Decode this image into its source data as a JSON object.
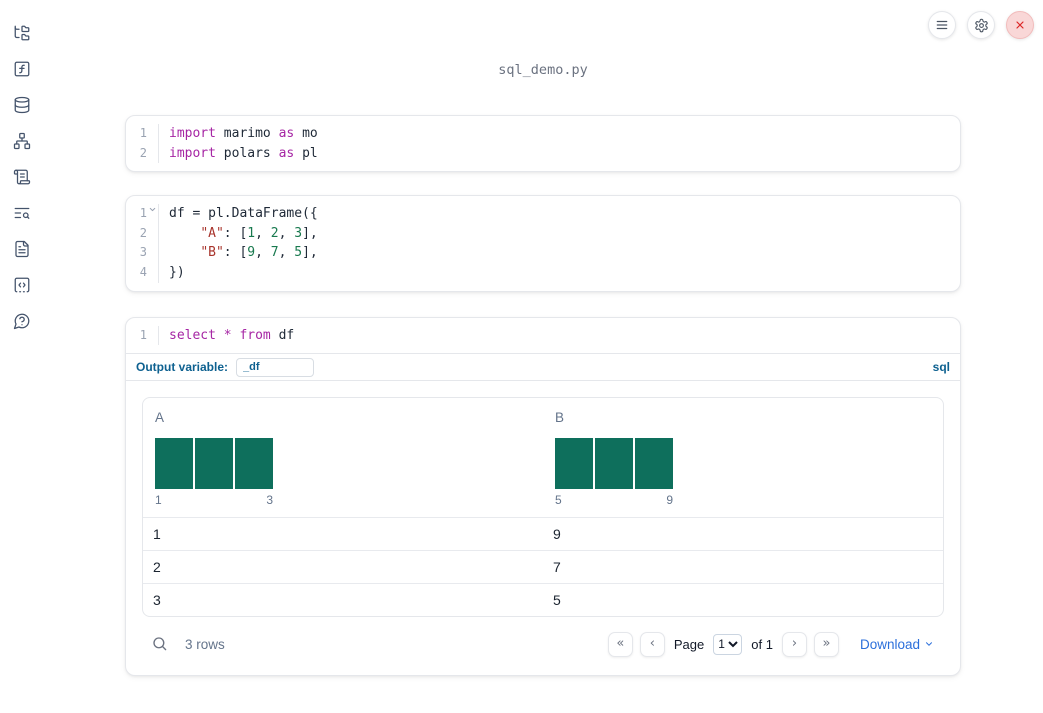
{
  "app": {
    "title": "sql_demo.py"
  },
  "colors": {
    "keyword": "#a626a4",
    "string": "#a8342c",
    "number": "#18794e",
    "histogram_bar": "#0e6f5c",
    "accent_blue": "#0e6190",
    "download_blue": "#2b6fdb",
    "close_red": "#dc2626"
  },
  "topbar": {
    "buttons": [
      "menu",
      "settings",
      "shutdown"
    ]
  },
  "sidebar": {
    "items": [
      {
        "icon": "file-explorer"
      },
      {
        "icon": "variables"
      },
      {
        "icon": "datasources"
      },
      {
        "icon": "dependencies"
      },
      {
        "icon": "scratchpad"
      },
      {
        "icon": "logs"
      },
      {
        "icon": "documentation"
      },
      {
        "icon": "snippets"
      },
      {
        "icon": "help"
      }
    ]
  },
  "cells": [
    {
      "name": "imports-cell",
      "lines": [
        {
          "n": "1",
          "toks": [
            [
              "kw",
              "import"
            ],
            [
              "pl",
              " marimo "
            ],
            [
              "kw",
              "as"
            ],
            [
              "pl",
              " mo"
            ]
          ]
        },
        {
          "n": "2",
          "toks": [
            [
              "kw",
              "import"
            ],
            [
              "pl",
              " polars "
            ],
            [
              "kw",
              "as"
            ],
            [
              "pl",
              " pl"
            ]
          ]
        }
      ]
    },
    {
      "name": "dataframe-cell",
      "lines": [
        {
          "n": "1",
          "fold": true,
          "toks": [
            [
              "pl",
              "df = pl.DataFrame({"
            ]
          ]
        },
        {
          "n": "2",
          "toks": [
            [
              "pl",
              "    "
            ],
            [
              "str",
              "\"A\""
            ],
            [
              "pl",
              ": ["
            ],
            [
              "num",
              "1"
            ],
            [
              "pl",
              ", "
            ],
            [
              "num",
              "2"
            ],
            [
              "pl",
              ", "
            ],
            [
              "num",
              "3"
            ],
            [
              "pl",
              "],"
            ]
          ]
        },
        {
          "n": "3",
          "toks": [
            [
              "pl",
              "    "
            ],
            [
              "str",
              "\"B\""
            ],
            [
              "pl",
              ": ["
            ],
            [
              "num",
              "9"
            ],
            [
              "pl",
              ", "
            ],
            [
              "num",
              "7"
            ],
            [
              "pl",
              ", "
            ],
            [
              "num",
              "5"
            ],
            [
              "pl",
              "],"
            ]
          ]
        },
        {
          "n": "4",
          "toks": [
            [
              "pl",
              "})"
            ]
          ]
        }
      ]
    },
    {
      "name": "sql-cell",
      "lines": [
        {
          "n": "1",
          "toks": [
            [
              "kw",
              "select"
            ],
            [
              "pl",
              " "
            ],
            [
              "kw",
              "*"
            ],
            [
              "pl",
              " "
            ],
            [
              "kw",
              "from"
            ],
            [
              "pl",
              " df"
            ]
          ]
        }
      ],
      "output_variable": {
        "label": "Output variable:",
        "value": "_df"
      },
      "language_badge": "sql"
    }
  ],
  "table": {
    "columns": [
      {
        "name": "A",
        "histogram": {
          "bins": [
            1,
            1,
            1
          ],
          "min_label": "1",
          "max_label": "3"
        }
      },
      {
        "name": "B",
        "histogram": {
          "bins": [
            1,
            1,
            1
          ],
          "min_label": "5",
          "max_label": "9"
        }
      }
    ],
    "rows": [
      [
        "1",
        "9"
      ],
      [
        "2",
        "7"
      ],
      [
        "3",
        "5"
      ]
    ],
    "footer": {
      "row_count": "3 rows",
      "page_label": "Page",
      "page_value": "1",
      "of_label": "of 1",
      "download_label": "Download"
    }
  }
}
